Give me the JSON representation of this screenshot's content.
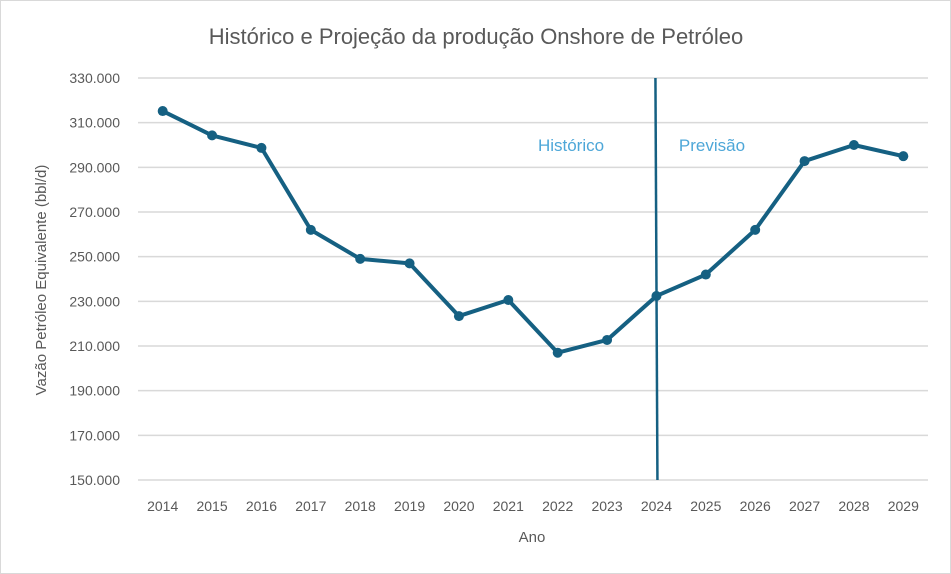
{
  "chart_data": {
    "type": "line",
    "title": "Histórico e Projeção da produção Onshore de Petróleo",
    "xlabel": "Ano",
    "ylabel": "Vazão Petróleo Equivalente (bbl/d)",
    "ylim": [
      150000,
      330000
    ],
    "yticks": [
      "150.000",
      "170.000",
      "190.000",
      "210.000",
      "230.000",
      "250.000",
      "270.000",
      "290.000",
      "310.000",
      "330.000"
    ],
    "grid": true,
    "categories": [
      "2014",
      "2015",
      "2016",
      "2017",
      "2018",
      "2019",
      "2020",
      "2021",
      "2022",
      "2023",
      "2024",
      "2025",
      "2026",
      "2027",
      "2028",
      "2029"
    ],
    "series": [
      {
        "values": [
          315200,
          304300,
          298700,
          262000,
          249000,
          247000,
          223400,
          230600,
          207000,
          212700,
          232400,
          242000,
          262000,
          292800,
          300000,
          295000
        ],
        "color": "#156082"
      }
    ],
    "divider": {
      "at": "2024",
      "color": "#156082"
    },
    "annotations": [
      {
        "text": "Histórico",
        "color": "#4ea7d8"
      },
      {
        "text": "Previsão",
        "color": "#4ea7d8"
      }
    ]
  }
}
